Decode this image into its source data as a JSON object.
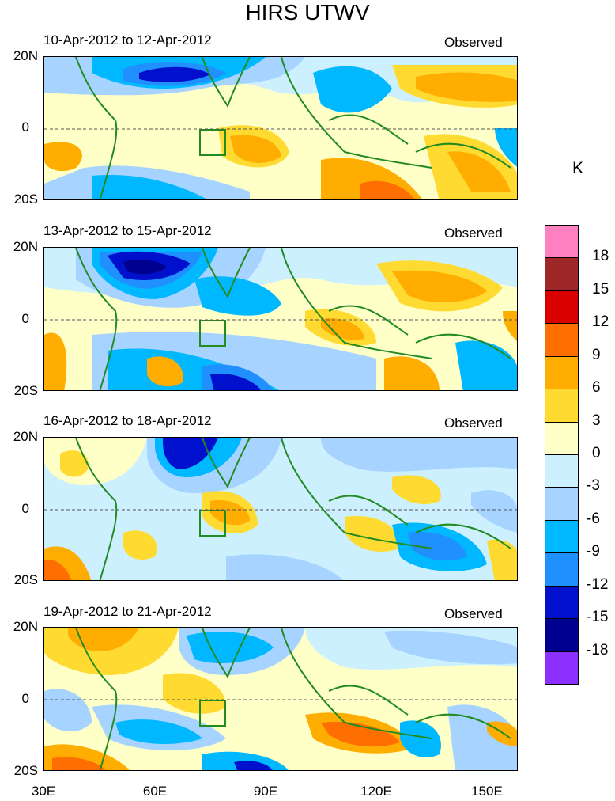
{
  "title": "HIRS UTWV",
  "unit": "K",
  "panel_tag": "Observed",
  "panels": [
    {
      "date_range": "10-Apr-2012 to 12-Apr-2012"
    },
    {
      "date_range": "13-Apr-2012 to 15-Apr-2012"
    },
    {
      "date_range": "16-Apr-2012 to 18-Apr-2012"
    },
    {
      "date_range": "19-Apr-2012 to 21-Apr-2012"
    }
  ],
  "lat_labels": [
    "20N",
    "0",
    "20S"
  ],
  "lon_labels": [
    "30E",
    "60E",
    "90E",
    "120E",
    "150E"
  ],
  "colorbar": {
    "labels": [
      "18",
      "15",
      "12",
      "9",
      "6",
      "3",
      "0",
      "-3",
      "-6",
      "-9",
      "-12",
      "-15",
      "-18"
    ],
    "colors": [
      "#ff80c0",
      "#9e2828",
      "#d90000",
      "#ff6e00",
      "#ffad00",
      "#ffda30",
      "#ffffc8",
      "#cdf0ff",
      "#a6d3ff",
      "#00b8ff",
      "#2090ff",
      "#0010cc",
      "#000090",
      "#8c30ff"
    ]
  }
}
